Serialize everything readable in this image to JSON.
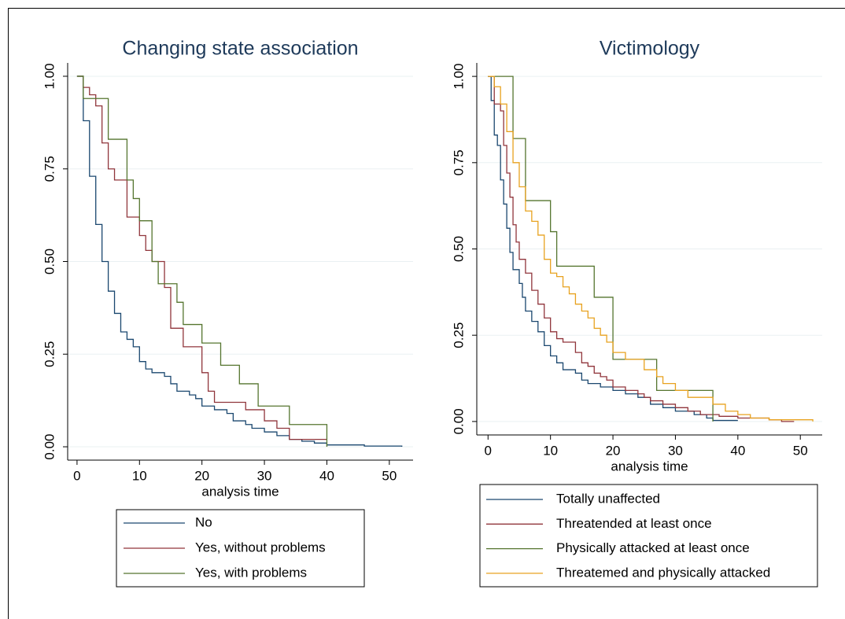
{
  "chart_data": [
    {
      "type": "line",
      "step": true,
      "title": "Changing state association",
      "x_label": "analysis time",
      "xlim": [
        -1.5,
        53.8
      ],
      "ylim": [
        -0.036,
        1.036
      ],
      "xticks": [
        0,
        10,
        20,
        30,
        40,
        50
      ],
      "yticks": [
        {
          "value": 0,
          "label": "0.00"
        },
        {
          "value": 0.25,
          "label": "0.25"
        },
        {
          "value": 0.5,
          "label": "0.50"
        },
        {
          "value": 0.75,
          "label": "0.75"
        },
        {
          "value": 1,
          "label": "1.00"
        }
      ],
      "grid": true,
      "series": [
        {
          "name": "No",
          "color": "#1a476f",
          "x": [
            0,
            1,
            2,
            3,
            4,
            5,
            6,
            7,
            8,
            9,
            10,
            11,
            12,
            14,
            15,
            16,
            18,
            19,
            20,
            22,
            24,
            25,
            27,
            28,
            30,
            32,
            34,
            36,
            38,
            40,
            46,
            52
          ],
          "values": [
            1,
            0.88,
            0.73,
            0.6,
            0.5,
            0.42,
            0.36,
            0.31,
            0.29,
            0.27,
            0.23,
            0.21,
            0.2,
            0.19,
            0.17,
            0.15,
            0.14,
            0.13,
            0.11,
            0.1,
            0.09,
            0.07,
            0.06,
            0.05,
            0.04,
            0.03,
            0.02,
            0.015,
            0.01,
            0.005,
            0.002,
            0
          ]
        },
        {
          "name": "Yes, without problems",
          "color": "#90353b",
          "x": [
            0,
            1,
            2,
            3,
            4,
            5,
            6,
            8,
            10,
            11,
            12,
            14,
            15,
            17,
            20,
            21,
            22,
            27,
            30,
            32,
            34,
            40
          ],
          "values": [
            1,
            0.97,
            0.95,
            0.92,
            0.82,
            0.75,
            0.72,
            0.62,
            0.57,
            0.53,
            0.5,
            0.43,
            0.32,
            0.27,
            0.2,
            0.15,
            0.12,
            0.1,
            0.07,
            0.05,
            0.02,
            0.02
          ]
        },
        {
          "name": "Yes, with problems",
          "color": "#55752f",
          "x": [
            0,
            1,
            5,
            8,
            9,
            10,
            12,
            13,
            16,
            17,
            20,
            23,
            26,
            29,
            34,
            40
          ],
          "values": [
            1,
            0.94,
            0.83,
            0.72,
            0.67,
            0.61,
            0.5,
            0.44,
            0.39,
            0.33,
            0.28,
            0.22,
            0.17,
            0.11,
            0.06,
            0
          ]
        }
      ]
    },
    {
      "type": "line",
      "step": true,
      "title": "Victimology",
      "x_label": "analysis time",
      "xlim": [
        -1.8,
        53.5
      ],
      "ylim": [
        -0.039,
        1.039
      ],
      "xticks": [
        0,
        10,
        20,
        30,
        40,
        50
      ],
      "yticks": [
        {
          "value": 0,
          "label": "0.00"
        },
        {
          "value": 0.25,
          "label": "0.25"
        },
        {
          "value": 0.5,
          "label": "0.50"
        },
        {
          "value": 0.75,
          "label": "0.75"
        },
        {
          "value": 1,
          "label": "1.00"
        }
      ],
      "grid": true,
      "series": [
        {
          "name": "Totally unaffected",
          "color": "#1a476f",
          "x": [
            0,
            0.5,
            1,
            1.5,
            2,
            2.5,
            3,
            3.5,
            4,
            5,
            5.5,
            6,
            7,
            8,
            9,
            10,
            11,
            12,
            14,
            15,
            16,
            18,
            20,
            22,
            24,
            26,
            28,
            30,
            33,
            35,
            36,
            40
          ],
          "values": [
            1,
            0.93,
            0.83,
            0.8,
            0.7,
            0.63,
            0.56,
            0.49,
            0.44,
            0.4,
            0.36,
            0.32,
            0.29,
            0.26,
            0.22,
            0.19,
            0.17,
            0.15,
            0.14,
            0.12,
            0.11,
            0.1,
            0.09,
            0.08,
            0.07,
            0.05,
            0.04,
            0.03,
            0.02,
            0.01,
            0.003,
            0.003
          ]
        },
        {
          "name": "Threatended at least once",
          "color": "#90353b",
          "x": [
            0,
            1,
            2,
            2.5,
            3,
            3.5,
            4,
            4.5,
            5,
            6,
            7,
            8,
            9,
            10,
            11,
            12,
            14,
            15,
            16,
            17,
            18,
            19,
            20,
            22,
            24,
            25,
            26,
            28,
            30,
            32,
            34,
            37,
            40,
            44,
            45,
            47,
            49
          ],
          "values": [
            1,
            0.92,
            0.9,
            0.8,
            0.72,
            0.65,
            0.57,
            0.52,
            0.47,
            0.43,
            0.38,
            0.34,
            0.3,
            0.26,
            0.24,
            0.23,
            0.2,
            0.17,
            0.16,
            0.14,
            0.13,
            0.12,
            0.1,
            0.09,
            0.08,
            0.07,
            0.06,
            0.05,
            0.04,
            0.03,
            0.02,
            0.015,
            0.01,
            0.01,
            0.005,
            0,
            0
          ]
        },
        {
          "name": "Physically attacked at least once",
          "color": "#55752f",
          "x": [
            0,
            4,
            6,
            10,
            11,
            17,
            20,
            27,
            36
          ],
          "values": [
            1,
            0.82,
            0.64,
            0.55,
            0.45,
            0.36,
            0.18,
            0.09,
            0
          ]
        },
        {
          "name": "Threatemed and physically attacked",
          "color": "#e8a21f",
          "x": [
            0,
            1,
            2,
            3,
            4,
            5,
            6,
            7,
            8,
            9,
            10,
            11,
            12,
            13,
            14,
            15,
            16,
            17,
            18,
            19,
            20,
            22,
            25,
            27,
            28,
            30,
            32,
            36,
            38,
            40,
            42,
            45,
            52
          ],
          "values": [
            1,
            0.97,
            0.92,
            0.84,
            0.75,
            0.68,
            0.61,
            0.58,
            0.54,
            0.47,
            0.43,
            0.42,
            0.39,
            0.37,
            0.34,
            0.32,
            0.3,
            0.27,
            0.25,
            0.23,
            0.2,
            0.18,
            0.15,
            0.13,
            0.11,
            0.09,
            0.07,
            0.05,
            0.03,
            0.02,
            0.01,
            0.005,
            0
          ]
        }
      ]
    }
  ]
}
